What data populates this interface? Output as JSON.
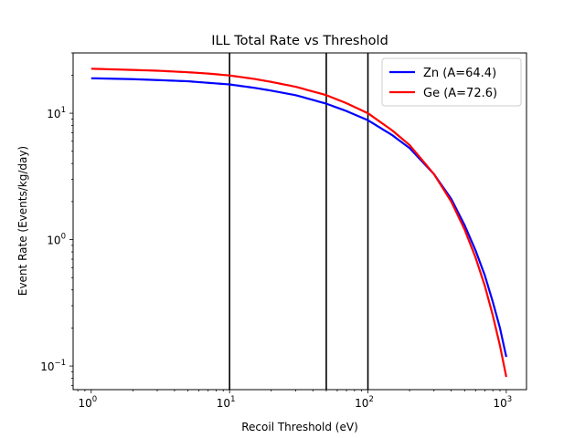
{
  "chart_data": {
    "type": "line",
    "title": "ILL Total Rate vs Threshold",
    "xlabel": "Recoil Threshold (eV)",
    "ylabel": "Event Rate (Events/kg/day)",
    "xscale": "log",
    "yscale": "log",
    "xlim": [
      0.74,
      1400
    ],
    "ylim": [
      0.065,
      30
    ],
    "x_ticks": [
      {
        "value": 1,
        "base": "10",
        "exp": "0"
      },
      {
        "value": 10,
        "base": "10",
        "exp": "1"
      },
      {
        "value": 100,
        "base": "10",
        "exp": "2"
      },
      {
        "value": 1000,
        "base": "10",
        "exp": "3"
      }
    ],
    "y_ticks": [
      {
        "value": 0.1,
        "base": "10",
        "exp": "−1"
      },
      {
        "value": 1,
        "base": "10",
        "exp": "0"
      },
      {
        "value": 10,
        "base": "10",
        "exp": "1"
      }
    ],
    "vertical_lines": [
      10,
      50,
      100
    ],
    "vertical_line_color": "#000000",
    "grid": false,
    "legend_position": "top-right",
    "series": [
      {
        "name": "Zn (A=64.4)",
        "color": "#0000ff",
        "x": [
          1,
          2,
          3,
          5,
          7,
          10,
          15,
          20,
          30,
          50,
          70,
          100,
          150,
          200,
          300,
          400,
          500,
          600,
          700,
          800,
          900,
          1000
        ],
        "y": [
          18.9,
          18.6,
          18.3,
          17.9,
          17.4,
          16.9,
          15.9,
          15.1,
          13.9,
          11.9,
          10.4,
          8.8,
          6.7,
          5.3,
          3.3,
          2.1,
          1.3,
          0.82,
          0.52,
          0.32,
          0.2,
          0.118
        ]
      },
      {
        "name": "Ge (A=72.6)",
        "color": "#ff0000",
        "x": [
          1,
          2,
          3,
          5,
          7,
          10,
          15,
          20,
          30,
          50,
          70,
          100,
          150,
          200,
          300,
          400,
          500,
          600,
          700,
          800,
          900,
          1000
        ],
        "y": [
          22.5,
          22.0,
          21.7,
          21.1,
          20.6,
          19.9,
          18.7,
          17.7,
          16.2,
          13.9,
          12.0,
          10.0,
          7.3,
          5.6,
          3.3,
          2.0,
          1.2,
          0.72,
          0.43,
          0.25,
          0.145,
          0.082
        ]
      }
    ]
  }
}
